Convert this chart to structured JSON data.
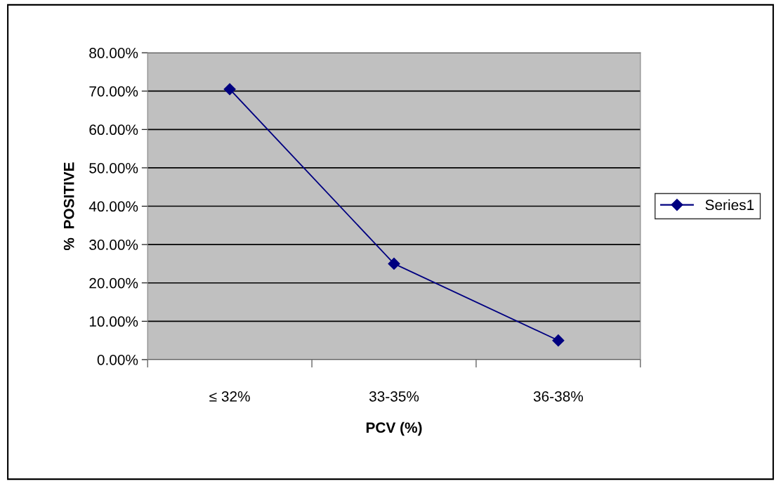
{
  "chart_data": {
    "type": "line",
    "xlabel": "PCV (%)",
    "ylabel": "%  POSITIVE",
    "categories": [
      "≤ 32%",
      "33-35%",
      "36-38%"
    ],
    "series": [
      {
        "name": "Series1",
        "color": "#000080",
        "values": [
          70.5,
          25,
          5
        ]
      }
    ],
    "ylim": [
      0,
      80
    ],
    "yticks": [
      {
        "value": 0,
        "label": "0.00%"
      },
      {
        "value": 10,
        "label": "10.00%"
      },
      {
        "value": 20,
        "label": "20.00%"
      },
      {
        "value": 30,
        "label": "30.00%"
      },
      {
        "value": 40,
        "label": "40.00%"
      },
      {
        "value": 50,
        "label": "50.00%"
      },
      {
        "value": 60,
        "label": "60.00%"
      },
      {
        "value": 70,
        "label": "70.00%"
      },
      {
        "value": 80,
        "label": "80.00%"
      }
    ],
    "grid": "y",
    "legend": "right",
    "marker": "diamond",
    "line_style": "solid"
  }
}
